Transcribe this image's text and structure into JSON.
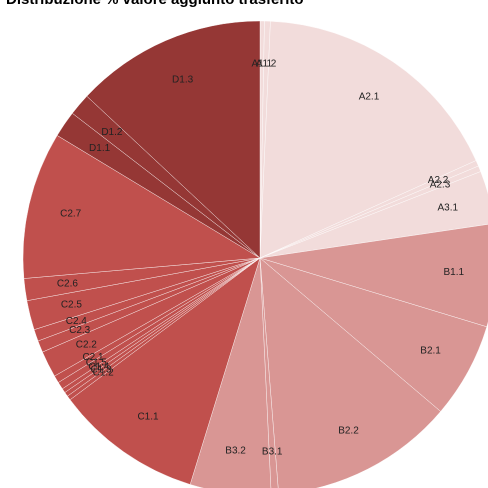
{
  "chart_data": {
    "type": "pie",
    "title": "Distribuzione % valore aggiunto trasferito",
    "slices": [
      {
        "label": "A1.1",
        "value": 0.3,
        "color": "#f2dcdb"
      },
      {
        "label": "A1.2",
        "value": 0.4,
        "color": "#f2dcdb"
      },
      {
        "label": "A2.1",
        "value": 17.5,
        "color": "#f2dcdb"
      },
      {
        "label": "A2.2",
        "value": 0.4,
        "color": "#f2dcdb"
      },
      {
        "label": "A2.3",
        "value": 0.4,
        "color": "#f2dcdb"
      },
      {
        "label": "A3.1",
        "value": 3.6,
        "color": "#f2dcdb"
      },
      {
        "label": "B1.1",
        "value": 7.0,
        "color": "#d99694"
      },
      {
        "label": "B2.1",
        "value": 6.5,
        "color": "#d99694"
      },
      {
        "label": "B2.2",
        "value": 12.5,
        "color": "#d99694"
      },
      {
        "label": "B3.1",
        "value": 0.5,
        "color": "#d99694"
      },
      {
        "label": "B3.2",
        "value": 5.5,
        "color": "#d99694"
      },
      {
        "label": "C1.1",
        "value": 10.0,
        "color": "#c0504d"
      },
      {
        "label": "C1.2",
        "value": 0.3,
        "color": "#c0504d"
      },
      {
        "label": "C1.3",
        "value": 0.3,
        "color": "#c0504d"
      },
      {
        "label": "C1.4",
        "value": 0.3,
        "color": "#c0504d"
      },
      {
        "label": "C1.5",
        "value": 0.5,
        "color": "#c0504d"
      },
      {
        "label": "C2.1",
        "value": 0.5,
        "color": "#c0504d"
      },
      {
        "label": "C2.2",
        "value": 1.8,
        "color": "#c0504d"
      },
      {
        "label": "C2.3",
        "value": 0.8,
        "color": "#c0504d"
      },
      {
        "label": "C2.4",
        "value": 0.8,
        "color": "#c0504d"
      },
      {
        "label": "C2.5",
        "value": 2.0,
        "color": "#c0504d"
      },
      {
        "label": "C2.6",
        "value": 1.5,
        "color": "#c0504d"
      },
      {
        "label": "C2.7",
        "value": 10.0,
        "color": "#c0504d"
      },
      {
        "label": "D1.1",
        "value": 1.8,
        "color": "#953735"
      },
      {
        "label": "D1.2",
        "value": 1.5,
        "color": "#953735"
      },
      {
        "label": "D1.3",
        "value": 13.0,
        "color": "#953735"
      }
    ]
  }
}
